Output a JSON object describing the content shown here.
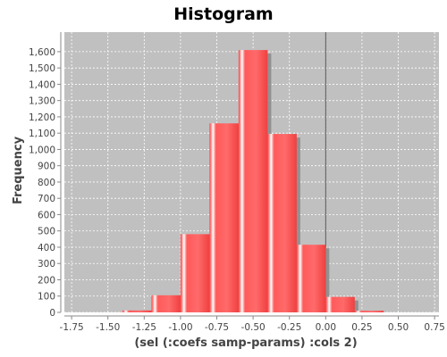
{
  "chart_data": {
    "type": "bar",
    "title": "Histogram",
    "xlabel": "(sel (:coefs samp-params) :cols 2)",
    "ylabel": "Frequency",
    "xlim": [
      -1.8,
      0.78
    ],
    "ylim": [
      0,
      1720
    ],
    "grid": true,
    "bin_width": 0.2,
    "bins": [
      {
        "x0": -1.4,
        "x1": -1.2,
        "value": 12
      },
      {
        "x0": -1.2,
        "x1": -1.0,
        "value": 105
      },
      {
        "x0": -1.0,
        "x1": -0.8,
        "value": 480
      },
      {
        "x0": -0.8,
        "x1": -0.6,
        "value": 1160
      },
      {
        "x0": -0.6,
        "x1": -0.4,
        "value": 1610
      },
      {
        "x0": -0.4,
        "x1": -0.2,
        "value": 1095
      },
      {
        "x0": -0.2,
        "x1": 0.0,
        "value": 415
      },
      {
        "x0": 0.0,
        "x1": 0.2,
        "value": 95
      },
      {
        "x0": 0.2,
        "x1": 0.4,
        "value": 10
      }
    ],
    "x_ticks": [
      "-1.75",
      "-1.50",
      "-1.25",
      "-1.00",
      "-0.75",
      "-0.50",
      "-0.25",
      "0.00",
      "0.25",
      "0.50",
      "0.75"
    ],
    "y_ticks": [
      "0",
      "100",
      "200",
      "300",
      "400",
      "500",
      "600",
      "700",
      "800",
      "900",
      "1,000",
      "1,100",
      "1,200",
      "1,300",
      "1,400",
      "1,500",
      "1,600"
    ],
    "colors": {
      "bar": "#ff5555",
      "bar_shadow": "#888888",
      "plot_background": "#c0c0c0",
      "gridline": "#ffffff"
    }
  }
}
